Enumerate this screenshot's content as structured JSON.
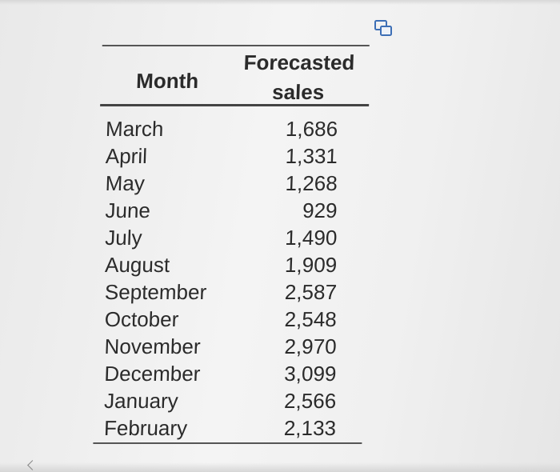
{
  "table": {
    "headers": {
      "month": "Month",
      "sales_line1": "Forecasted",
      "sales_line2": "sales"
    },
    "rows": [
      {
        "month": "March",
        "sales": "1,686"
      },
      {
        "month": "April",
        "sales": "1,331"
      },
      {
        "month": "May",
        "sales": "1,268"
      },
      {
        "month": "June",
        "sales": "929"
      },
      {
        "month": "July",
        "sales": "1,490"
      },
      {
        "month": "August",
        "sales": "1,909"
      },
      {
        "month": "September",
        "sales": "2,587"
      },
      {
        "month": "October",
        "sales": "2,548"
      },
      {
        "month": "November",
        "sales": "2,970"
      },
      {
        "month": "December",
        "sales": "3,099"
      },
      {
        "month": "January",
        "sales": "2,566"
      },
      {
        "month": "February",
        "sales": "2,133"
      }
    ]
  },
  "icons": {
    "copy": "copy-icon"
  },
  "colors": {
    "text": "#2b2b2b",
    "rule": "#555555",
    "icon": "#3d6fb6"
  }
}
